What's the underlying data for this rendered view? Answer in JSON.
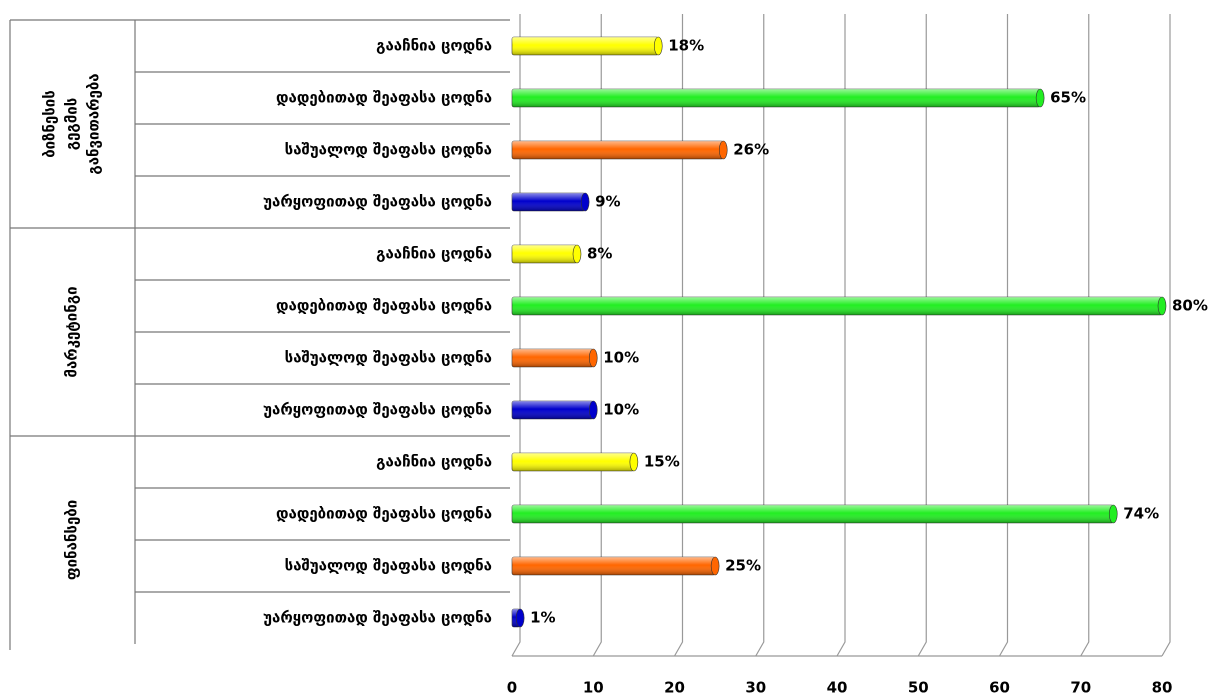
{
  "chart_data": {
    "type": "bar",
    "orientation": "horizontal",
    "groups": [
      {
        "label_lines": [
          "ბიზნესის",
          "გეგმის",
          "განვითარება"
        ],
        "start": 0,
        "end": 3
      },
      {
        "label_lines": [
          "მარკეტინგი"
        ],
        "start": 4,
        "end": 7
      },
      {
        "label_lines": [
          "ფინანსები"
        ],
        "start": 8,
        "end": 11
      }
    ],
    "categories": [
      "გააჩნია ცოდნა",
      "დადებითად შეაფასა ცოდნა",
      "საშუალოდ შეაფასა ცოდნა",
      "უარყოფითად შეაფასა ცოდნა",
      "გააჩნია ცოდნა",
      "დადებითად შეაფასა ცოდნა",
      "საშუალოდ შეაფასა ცოდნა",
      "უარყოფითად შეაფასა ცოდნა",
      "გააჩნია ცოდნა",
      "დადებითად შეაფასა ცოდნა",
      "საშუალოდ შეაფასა ცოდნა",
      "უარყოფითად შეაფასა ცოდნა"
    ],
    "values": [
      18,
      65,
      26,
      9,
      8,
      80,
      10,
      10,
      15,
      74,
      25,
      1
    ],
    "value_labels": [
      "18%",
      "65%",
      "26%",
      "9%",
      "8%",
      "80%",
      "10%",
      "10%",
      "15%",
      "74%",
      "25%",
      "1%"
    ],
    "colors": [
      "#ffff00",
      "#22ee22",
      "#ff6600",
      "#0000cc",
      "#ffff00",
      "#22ee22",
      "#ff6600",
      "#0000cc",
      "#ffff00",
      "#22ee22",
      "#ff6600",
      "#0000cc"
    ],
    "xlim": [
      0,
      80
    ],
    "xticks": [
      0,
      10,
      20,
      30,
      40,
      50,
      60,
      70,
      80
    ],
    "grid": true
  }
}
